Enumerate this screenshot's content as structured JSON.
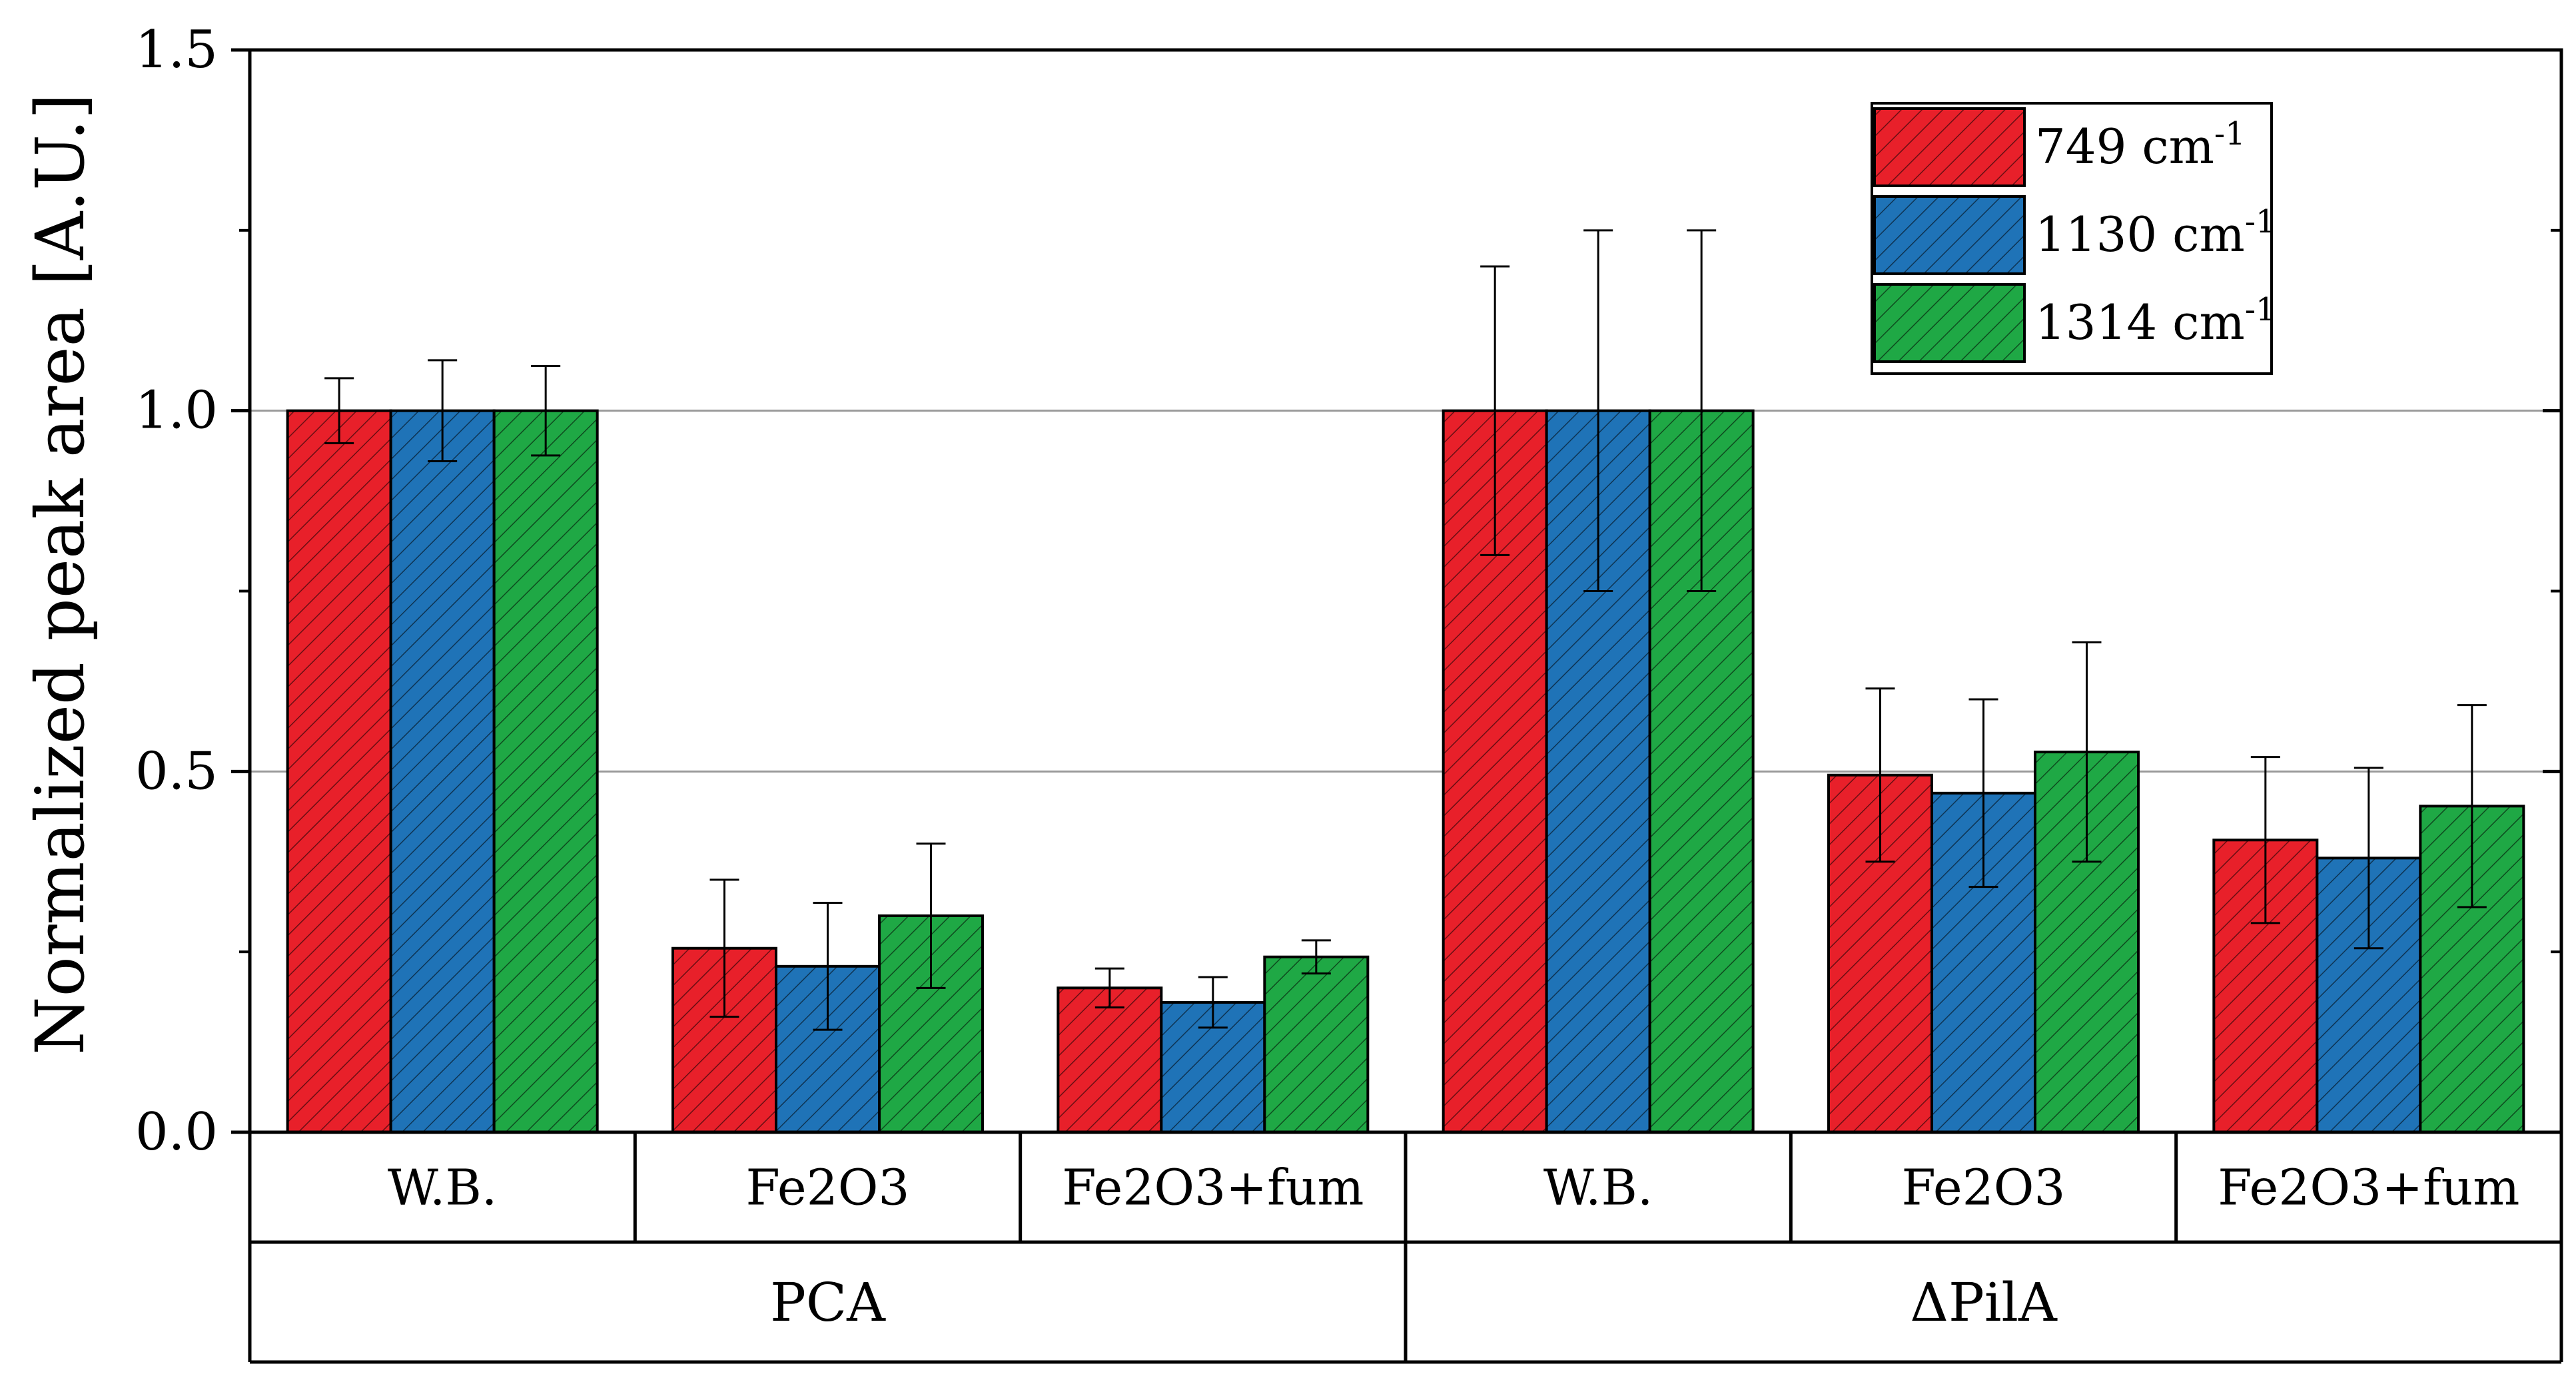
{
  "chart_data": {
    "type": "bar",
    "ylabel": "Normalized peak area [A.U.]",
    "ylim": [
      0,
      1.5
    ],
    "yticks": [
      "0.0",
      "0.5",
      "1.0",
      "1.5"
    ],
    "gridlines_y": [
      0.5,
      1.0
    ],
    "categories": [
      "W.B.",
      "Fe2O3",
      "Fe2O3+fum",
      "W.B.",
      "Fe2O3",
      "Fe2O3+fum"
    ],
    "groups": [
      {
        "label": "PCA",
        "categories": [
          "W.B.",
          "Fe2O3",
          "Fe2O3+fum"
        ]
      },
      {
        "label": "ΔPilA",
        "categories": [
          "W.B.",
          "Fe2O3",
          "Fe2O3+fum"
        ]
      }
    ],
    "legend_position": "top-right",
    "series": [
      {
        "name": "749 cm",
        "superscript": "-1",
        "color": "#e8202a",
        "values": [
          1.0,
          0.255,
          0.2,
          1.0,
          0.495,
          0.405
        ],
        "errors": [
          0.045,
          0.095,
          0.027,
          0.2,
          0.12,
          0.115
        ]
      },
      {
        "name": "1130 cm",
        "superscript": "-1",
        "color": "#1f73b7",
        "values": [
          1.0,
          0.23,
          0.18,
          1.0,
          0.47,
          0.38
        ],
        "errors": [
          0.07,
          0.088,
          0.035,
          0.25,
          0.13,
          0.125
        ]
      },
      {
        "name": "1314 cm",
        "superscript": "-1",
        "color": "#1fa845",
        "values": [
          1.0,
          0.3,
          0.243,
          1.0,
          0.527,
          0.452
        ],
        "errors": [
          0.062,
          0.1,
          0.023,
          0.25,
          0.152,
          0.14
        ]
      }
    ]
  }
}
